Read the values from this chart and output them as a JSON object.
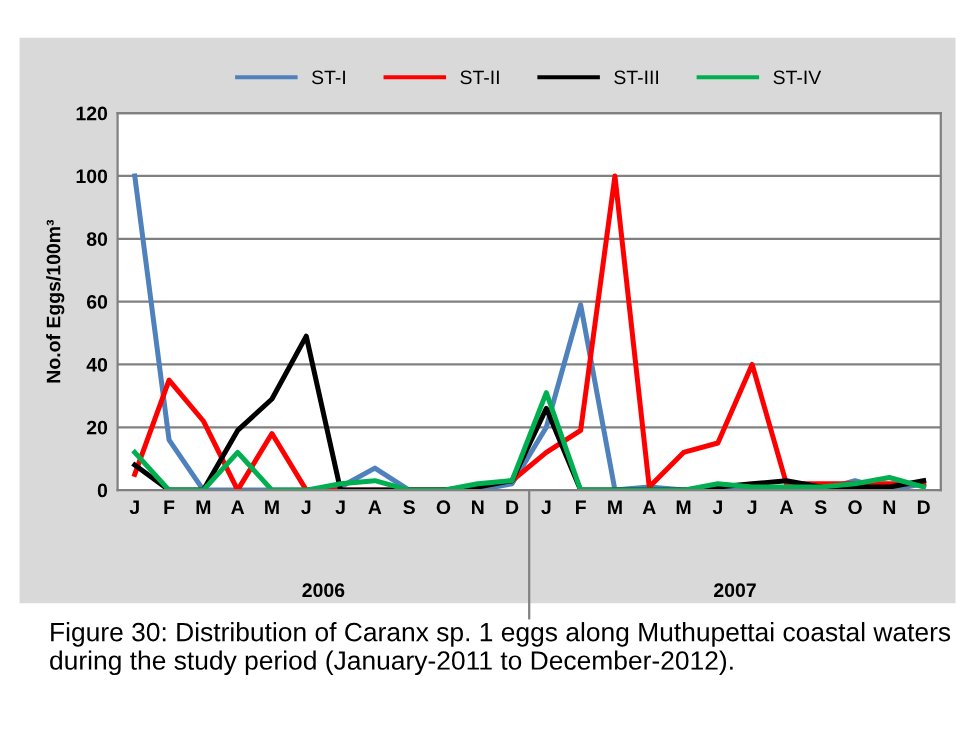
{
  "chart_data": {
    "type": "line",
    "ylabel": "No.of Eggs/100m³",
    "categories": [
      "J",
      "F",
      "M",
      "A",
      "M",
      "J",
      "J",
      "A",
      "S",
      "O",
      "N",
      "D",
      "J",
      "F",
      "M",
      "A",
      "M",
      "J",
      "J",
      "A",
      "S",
      "O",
      "N",
      "D"
    ],
    "series": [
      {
        "name": "ST-I",
        "color": "#4f81bd",
        "values": [
          100,
          16,
          0,
          0,
          0,
          0,
          1,
          7,
          0,
          0,
          0,
          2,
          20,
          59,
          0,
          1,
          0,
          0,
          0,
          0,
          0,
          3,
          0,
          2
        ]
      },
      {
        "name": "ST-II",
        "color": "#ff0000",
        "values": [
          5,
          35,
          22,
          0,
          18,
          0,
          0,
          0,
          0,
          0,
          null,
          3,
          12,
          19,
          100,
          1,
          12,
          15,
          40,
          2,
          2,
          2,
          2,
          2
        ]
      },
      {
        "name": "ST-III",
        "color": "#000000",
        "values": [
          8,
          0,
          0,
          19,
          29,
          49,
          0,
          0,
          0,
          0,
          1,
          3,
          26,
          0,
          0,
          0,
          0,
          1,
          2,
          3,
          1,
          1,
          1,
          3
        ]
      },
      {
        "name": "ST-IV",
        "color": "#00b050",
        "values": [
          12,
          0,
          0,
          12,
          0,
          0,
          2,
          3,
          0,
          0,
          2,
          3,
          31,
          0,
          0,
          0,
          0,
          2,
          1,
          1,
          1,
          2,
          4,
          1
        ]
      }
    ],
    "ylim": [
      0,
      120
    ],
    "yticks": [
      0,
      20,
      40,
      60,
      80,
      100,
      120
    ],
    "grid": "y",
    "legend": "top",
    "marker": "none",
    "line_style": "solid",
    "annotations": [
      "2006",
      "2007",
      "Figure 30: Distribution of Caranx sp. 1 eggs along Muthupettai coastal waters during the study period (January-2011 to December-2012)."
    ]
  }
}
